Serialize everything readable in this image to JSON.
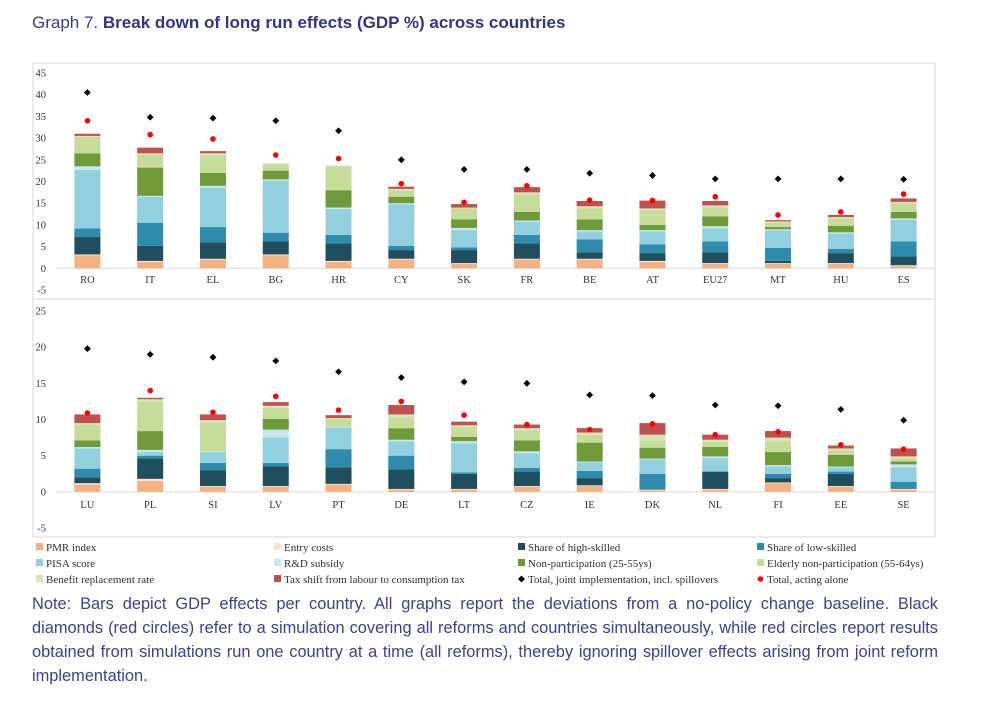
{
  "figure": {
    "graph_number": "Graph 7.",
    "title": "Break down of long run effects (GDP %) across countries",
    "note": "Note: Bars depict GDP effects per country. All graphs report the deviations from a no-policy change baseline. Black diamonds (red circles) refer to a simulation covering all reforms and countries simultaneously, while red circles report results obtained from simulations run one country at a time (all reforms), thereby ignoring spillover effects arising from joint reform implementation."
  },
  "colors": {
    "PMR index": "#f4b183",
    "Entry costs": "#fbe0cc",
    "Share of high-skilled": "#1f4e5f",
    "Share of low-skilled": "#2e8bab",
    "PISA score": "#92d0e0",
    "R&D subsidy": "#c6e6ef",
    "Non-participation (25-55ys)": "#6f9a3a",
    "Elderly non-participation (55-64ys)": "#c5dc9a",
    "Benefit replacement rate": "#d6e6bc",
    "Tax shift from labour to consumption tax": "#c0504d",
    "diamond": "#000000",
    "circle": "#ff0000"
  },
  "chart_data": [
    {
      "type": "bar",
      "stacked": true,
      "ylim": [
        -5,
        45
      ],
      "yticks": [
        "-5",
        "0",
        "5",
        "10",
        "15",
        "20",
        "25",
        "30",
        "35",
        "40",
        "45"
      ],
      "grid": false,
      "legend": "bottom",
      "categories": [
        "RO",
        "IT",
        "EL",
        "BG",
        "HR",
        "CY",
        "SK",
        "FR",
        "BE",
        "AT",
        "EU27",
        "MT",
        "HU",
        "ES"
      ],
      "series": [
        {
          "name": "PMR index",
          "values": [
            3.0,
            1.5,
            2.0,
            3.0,
            1.5,
            2.0,
            1.0,
            2.0,
            2.0,
            1.5,
            1.0,
            1.0,
            1.0,
            0.5
          ]
        },
        {
          "name": "Entry costs",
          "values": [
            0.2,
            0.2,
            0.2,
            0.2,
            0.2,
            0.2,
            0.2,
            0.2,
            0.2,
            0.2,
            0.2,
            0.2,
            0.2,
            0.2
          ]
        },
        {
          "name": "Share of high-skilled",
          "values": [
            4.0,
            3.5,
            3.8,
            3.0,
            4.0,
            2.0,
            3.0,
            3.5,
            1.5,
            1.8,
            2.5,
            0.5,
            2.3,
            2.0
          ]
        },
        {
          "name": "Share of low-skilled",
          "values": [
            2.0,
            5.3,
            3.5,
            2.0,
            2.0,
            1.0,
            0.6,
            2.0,
            3.0,
            2.0,
            2.5,
            3.0,
            1.0,
            3.5
          ]
        },
        {
          "name": "PISA score",
          "values": [
            13.5,
            6.0,
            9.0,
            12.0,
            6.0,
            9.5,
            4.0,
            3.0,
            1.8,
            3.0,
            3.0,
            4.0,
            3.5,
            5.0
          ]
        },
        {
          "name": "R&D subsidy",
          "values": [
            0.8,
            0.2,
            0.5,
            0.3,
            0.3,
            0.3,
            0.5,
            0.3,
            0.3,
            0.3,
            0.5,
            0.3,
            0.3,
            0.3
          ]
        },
        {
          "name": "Non-participation (25-55ys)",
          "values": [
            3.0,
            6.5,
            3.0,
            2.0,
            4.0,
            1.5,
            2.0,
            2.0,
            2.5,
            1.2,
            2.3,
            0.5,
            1.5,
            1.5
          ]
        },
        {
          "name": "Elderly non-participation (55-64ys)",
          "values": [
            3.8,
            3.0,
            4.0,
            1.5,
            5.5,
            1.5,
            2.5,
            4.0,
            2.5,
            3.5,
            2.0,
            1.0,
            1.7,
            2.0
          ]
        },
        {
          "name": "Benefit replacement rate",
          "values": [
            0.2,
            0.3,
            0.5,
            0.2,
            0.2,
            0.3,
            0.2,
            0.5,
            0.5,
            0.3,
            0.5,
            0.3,
            0.3,
            0.3
          ]
        },
        {
          "name": "Tax shift from labour to consumption tax",
          "values": [
            0.5,
            1.3,
            0.5,
            0.0,
            0.0,
            0.5,
            0.8,
            1.2,
            1.2,
            1.8,
            1.0,
            0.3,
            0.5,
            0.8
          ]
        }
      ],
      "markers": [
        {
          "name": "Total, joint implementation, incl. spillovers",
          "values": [
            40.5,
            34.8,
            34.6,
            34.0,
            31.7,
            25.0,
            22.8,
            22.8,
            21.9,
            21.4,
            20.6,
            20.6,
            20.6,
            20.5
          ]
        },
        {
          "name": "Total, acting alone",
          "values": [
            34.0,
            30.8,
            29.8,
            26.1,
            25.3,
            19.5,
            15.2,
            19.0,
            15.7,
            15.6,
            16.5,
            12.3,
            13.0,
            17.1
          ]
        }
      ]
    },
    {
      "type": "bar",
      "stacked": true,
      "ylim": [
        -5,
        25
      ],
      "yticks": [
        "-5",
        "0",
        "5",
        "10",
        "15",
        "20",
        "25"
      ],
      "grid": false,
      "legend": "bottom",
      "categories": [
        "LU",
        "PL",
        "SI",
        "LV",
        "PT",
        "DE",
        "LT",
        "CZ",
        "IE",
        "DK",
        "NL",
        "FI",
        "EE",
        "SE"
      ],
      "series": [
        {
          "name": "PMR index",
          "values": [
            1.0,
            1.5,
            0.7,
            0.7,
            1.0,
            0.3,
            0.3,
            0.7,
            0.8,
            0.2,
            0.3,
            1.2,
            0.7,
            0.3
          ]
        },
        {
          "name": "Entry costs",
          "values": [
            0.2,
            0.3,
            0.1,
            0.1,
            0.1,
            0.1,
            0.1,
            0.1,
            0.1,
            0.1,
            0.1,
            0.1,
            0.1,
            0.1
          ]
        },
        {
          "name": "Share of high-skilled",
          "values": [
            0.8,
            2.8,
            2.2,
            2.7,
            2.3,
            2.7,
            2.1,
            2.0,
            1.0,
            0.0,
            2.4,
            0.6,
            1.7,
            0.0
          ]
        },
        {
          "name": "Share of low-skilled",
          "values": [
            1.2,
            0.4,
            1.0,
            0.5,
            2.5,
            1.9,
            0.2,
            0.5,
            1.0,
            2.2,
            0.0,
            0.6,
            0.3,
            1.0
          ]
        },
        {
          "name": "PISA score",
          "values": [
            2.8,
            0.5,
            1.5,
            3.5,
            3.0,
            2.0,
            4.0,
            2.0,
            1.2,
            2.0,
            1.9,
            1.0,
            0.6,
            2.0
          ]
        },
        {
          "name": "R&D subsidy",
          "values": [
            0.2,
            0.3,
            0.1,
            1.1,
            0.1,
            0.2,
            0.3,
            0.3,
            0.1,
            0.1,
            0.2,
            0.2,
            0.1,
            0.4
          ]
        },
        {
          "name": "Non-participation (25-55ys)",
          "values": [
            0.9,
            2.6,
            0.0,
            1.5,
            0.0,
            1.6,
            0.6,
            1.5,
            2.6,
            1.5,
            1.3,
            1.8,
            1.6,
            0.4
          ]
        },
        {
          "name": "Elderly non-participation (55-64ys)",
          "values": [
            2.2,
            4.1,
            4.0,
            1.5,
            1.0,
            1.5,
            1.3,
            1.4,
            1.1,
            1.0,
            0.7,
            1.5,
            0.6,
            0.4
          ]
        },
        {
          "name": "Benefit replacement rate",
          "values": [
            0.2,
            0.3,
            0.3,
            0.3,
            0.2,
            0.4,
            0.3,
            0.3,
            0.3,
            0.8,
            0.3,
            0.5,
            0.3,
            0.3
          ]
        },
        {
          "name": "Tax shift from labour to consumption tax",
          "values": [
            1.2,
            0.2,
            0.8,
            0.5,
            0.4,
            1.3,
            0.5,
            0.5,
            0.6,
            1.6,
            0.7,
            0.9,
            0.4,
            1.1
          ]
        }
      ],
      "markers": [
        {
          "name": "Total, joint implementation, incl. spillovers",
          "values": [
            19.8,
            19.0,
            18.6,
            18.1,
            16.6,
            15.8,
            15.2,
            15.0,
            13.4,
            13.3,
            12.0,
            11.9,
            11.4,
            9.9
          ]
        },
        {
          "name": "Total, acting alone",
          "values": [
            10.9,
            14.0,
            11.0,
            13.2,
            11.3,
            12.5,
            10.6,
            9.3,
            8.6,
            9.4,
            7.9,
            8.3,
            6.5,
            5.9
          ]
        }
      ]
    }
  ],
  "legend": {
    "items": [
      {
        "label": "PMR index",
        "kind": "swatch"
      },
      {
        "label": "Entry costs",
        "kind": "swatch"
      },
      {
        "label": "Share of high-skilled",
        "kind": "swatch"
      },
      {
        "label": "Share of low-skilled",
        "kind": "swatch"
      },
      {
        "label": "PISA score",
        "kind": "swatch"
      },
      {
        "label": "R&D subsidy",
        "kind": "swatch"
      },
      {
        "label": "Non-participation (25-55ys)",
        "kind": "swatch"
      },
      {
        "label": "Elderly non-participation (55-64ys)",
        "kind": "swatch"
      },
      {
        "label": "Benefit replacement rate",
        "kind": "swatch"
      },
      {
        "label": "Tax shift from labour to consumption tax",
        "kind": "swatch"
      },
      {
        "label": "Total, joint implementation, incl. spillovers",
        "kind": "diamond"
      },
      {
        "label": "Total, acting alone",
        "kind": "circle"
      }
    ]
  }
}
